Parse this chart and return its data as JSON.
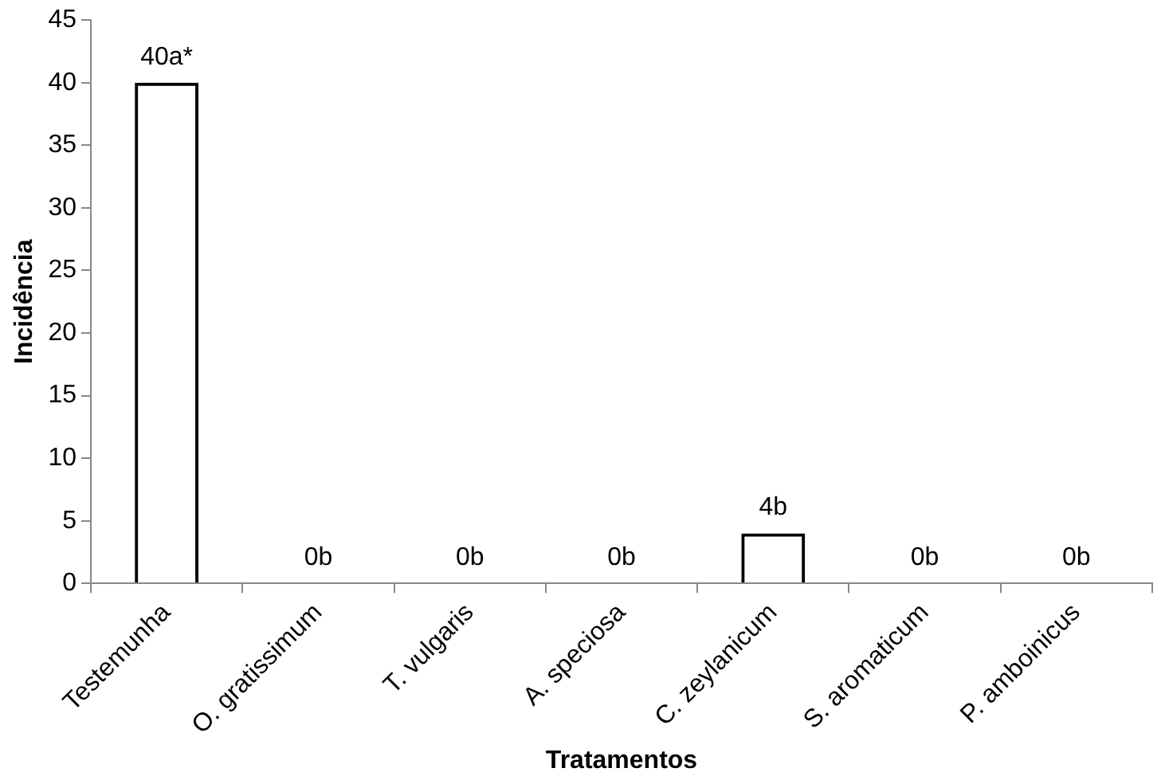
{
  "chart_data": {
    "type": "bar",
    "xlabel": "Tratamentos",
    "ylabel": "Incidência",
    "categories": [
      "Testemunha",
      "O. gratissimum",
      "T. vulgaris",
      "A. speciosa",
      "C. zeylanicum",
      "S. aromaticum",
      "P. amboinicus"
    ],
    "series": [
      {
        "color": "#000000",
        "values": [
          40,
          0,
          0,
          0,
          4,
          0,
          0
        ],
        "value_labels": [
          "40a*",
          "0b",
          "0b",
          "0b",
          "4b",
          "0b",
          "0b"
        ]
      }
    ],
    "ylim": [
      0,
      45
    ],
    "yticks": [
      0,
      5,
      10,
      15,
      20,
      25,
      30,
      35,
      40,
      45
    ],
    "grid": false,
    "legend": false
  }
}
